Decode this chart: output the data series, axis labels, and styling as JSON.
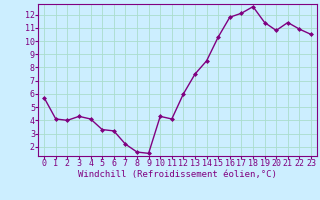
{
  "x": [
    0,
    1,
    2,
    3,
    4,
    5,
    6,
    7,
    8,
    9,
    10,
    11,
    12,
    13,
    14,
    15,
    16,
    17,
    18,
    19,
    20,
    21,
    22,
    23
  ],
  "y": [
    5.7,
    4.1,
    4.0,
    4.3,
    4.1,
    3.3,
    3.2,
    2.2,
    1.6,
    1.5,
    4.3,
    4.1,
    6.0,
    7.5,
    8.5,
    10.3,
    11.8,
    12.1,
    12.6,
    11.4,
    10.8,
    11.4,
    10.9,
    10.5
  ],
  "line_color": "#800080",
  "marker_color": "#800080",
  "bg_color": "#cceeff",
  "grid_color": "#aaddcc",
  "xlabel": "Windchill (Refroidissement éolien,°C)",
  "xlim": [
    -0.5,
    23.5
  ],
  "ylim": [
    1.3,
    12.8
  ],
  "xtick_labels": [
    "0",
    "1",
    "2",
    "3",
    "4",
    "5",
    "6",
    "7",
    "8",
    "9",
    "10",
    "11",
    "12",
    "13",
    "14",
    "15",
    "16",
    "17",
    "18",
    "19",
    "20",
    "21",
    "22",
    "23"
  ],
  "yticks": [
    2,
    3,
    4,
    5,
    6,
    7,
    8,
    9,
    10,
    11,
    12
  ],
  "axis_label_color": "#800080",
  "tick_color": "#800080",
  "font_size_xlabel": 6.5,
  "font_size_tick": 6.0,
  "linewidth": 1.0,
  "markersize": 2.0
}
